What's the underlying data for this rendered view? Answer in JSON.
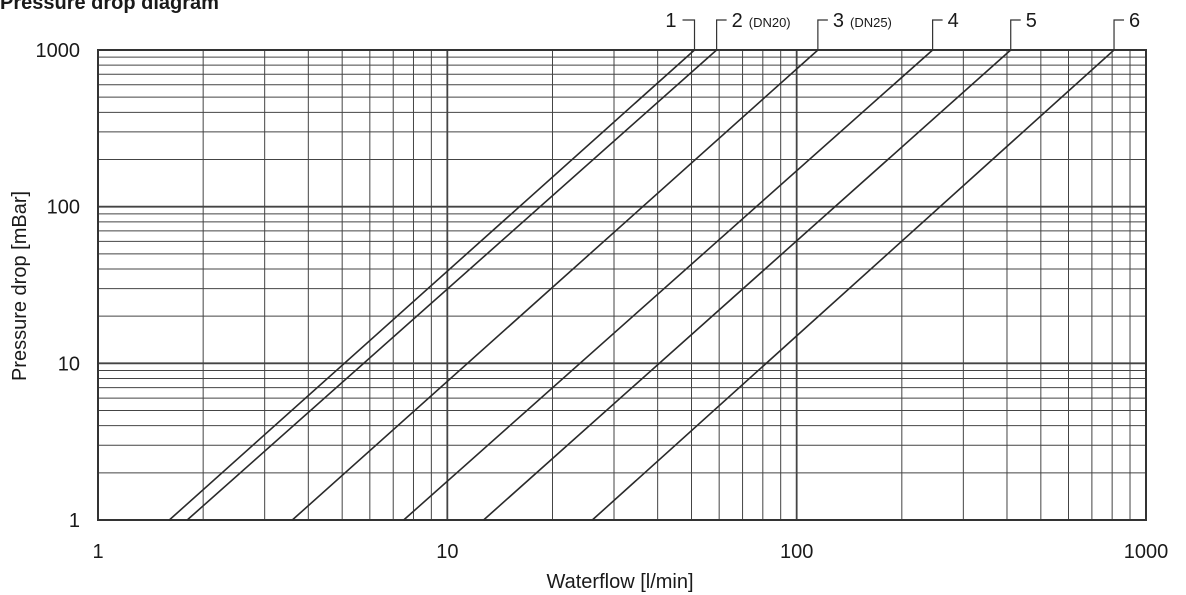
{
  "chart_data": {
    "type": "line",
    "title": "Pressure drop diagram",
    "xlabel": "Waterflow [l/min]",
    "ylabel": "Pressure drop [mBar]",
    "xscale": "log",
    "yscale": "log",
    "xlim": [
      1,
      1000
    ],
    "ylim": [
      1,
      1000
    ],
    "grid": true,
    "x_ticks": [
      "1",
      "10",
      "100",
      "1000"
    ],
    "y_ticks": [
      "1",
      "10",
      "100",
      "1000"
    ],
    "series": [
      {
        "name": "1",
        "note": "",
        "x": [
          1.6,
          51
        ],
        "y": [
          1,
          1000
        ]
      },
      {
        "name": "2",
        "note": "(DN20)",
        "x": [
          1.8,
          59
        ],
        "y": [
          1,
          1000
        ]
      },
      {
        "name": "3",
        "note": "(DN25)",
        "x": [
          3.6,
          115
        ],
        "y": [
          1,
          1000
        ]
      },
      {
        "name": "4",
        "note": "",
        "x": [
          7.5,
          245
        ],
        "y": [
          1,
          1000
        ]
      },
      {
        "name": "5",
        "note": "",
        "x": [
          12.7,
          410
        ],
        "y": [
          1,
          1000
        ]
      },
      {
        "name": "6",
        "note": "",
        "x": [
          26,
          810
        ],
        "y": [
          1,
          1000
        ]
      }
    ]
  }
}
